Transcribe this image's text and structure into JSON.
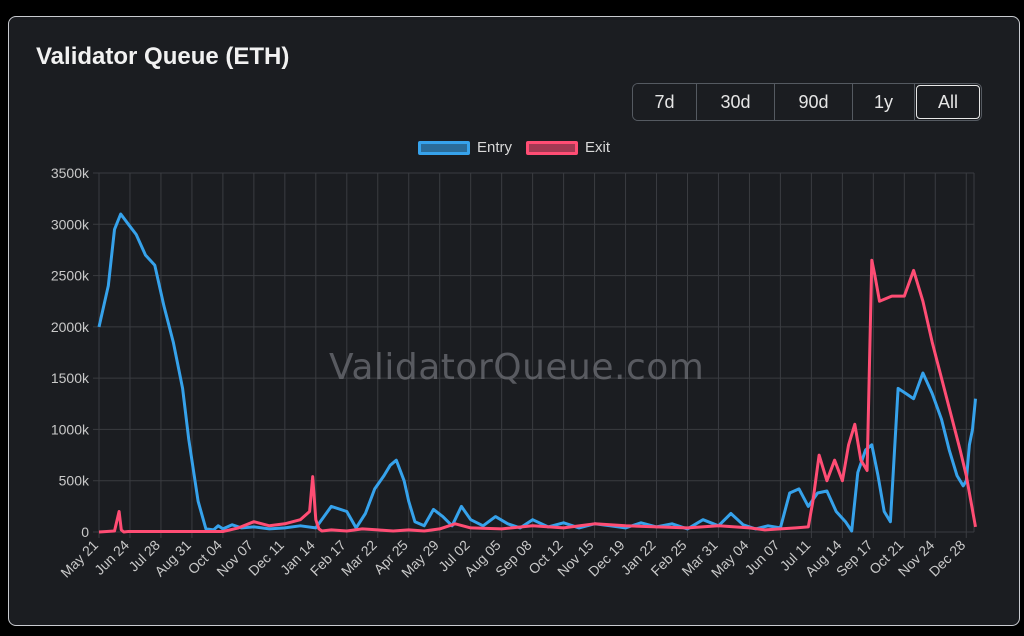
{
  "header": {
    "title": "Validator Queue (ETH)"
  },
  "range_buttons": [
    {
      "label": "7d",
      "active": false
    },
    {
      "label": "30d",
      "active": false
    },
    {
      "label": "90d",
      "active": false
    },
    {
      "label": "1y",
      "active": false
    },
    {
      "label": "All",
      "active": true
    }
  ],
  "watermark": "ValidatorQueue.com",
  "colors": {
    "entry": "#36a2eb",
    "exit": "#ff4d74",
    "grid": "#3a3c41",
    "text": "#c9c9c9"
  },
  "chart_data": {
    "type": "line",
    "title": "Validator Queue (ETH)",
    "legend": "top-center",
    "grid": true,
    "ylim": [
      0,
      3500
    ],
    "y_ticks": [
      "0",
      "500k",
      "1000k",
      "1500k",
      "2000k",
      "2500k",
      "3000k",
      "3500k"
    ],
    "categories": [
      "May 21",
      "Jun 24",
      "Jul 28",
      "Aug 31",
      "Oct 04",
      "Nov 07",
      "Dec 11",
      "Jan 14",
      "Feb 17",
      "Mar 22",
      "Apr 25",
      "May 29",
      "Jul 02",
      "Aug 05",
      "Sep 08",
      "Oct 12",
      "Nov 15",
      "Dec 19",
      "Jan 22",
      "Feb 25",
      "Mar 31",
      "May 04",
      "Jun 07",
      "Jul 11",
      "Aug 14",
      "Sep 17",
      "Oct 21",
      "Nov 24",
      "Dec 28"
    ],
    "series": [
      {
        "name": "Entry",
        "color": "#36a2eb",
        "x": [
          0,
          0.3,
          0.5,
          0.7,
          0.95,
          1.2,
          1.5,
          1.8,
          2.1,
          2.4,
          2.7,
          2.9,
          3.2,
          3.45,
          3.7,
          3.85,
          4.0,
          4.3,
          4.6,
          5.0,
          5.5,
          6.0,
          6.5,
          7.0,
          7.5,
          8.0,
          8.3,
          8.6,
          8.9,
          9.2,
          9.4,
          9.6,
          9.85,
          10.0,
          10.2,
          10.5,
          10.8,
          11.1,
          11.4,
          11.7,
          12.0,
          12.4,
          12.8,
          13.2,
          13.6,
          14.0,
          14.5,
          15.0,
          15.5,
          16.0,
          16.5,
          17.0,
          17.5,
          18.0,
          18.5,
          19.0,
          19.5,
          20.0,
          20.4,
          20.8,
          21.2,
          21.6,
          22.0,
          22.3,
          22.6,
          22.9,
          23.2,
          23.5,
          23.8,
          24.1,
          24.3,
          24.5,
          24.75,
          24.95,
          25.15,
          25.35,
          25.55,
          25.8,
          26.05,
          26.3,
          26.6,
          26.9,
          27.2,
          27.45,
          27.7,
          27.9,
          28.0,
          28.1,
          28.2,
          28.3
        ],
        "values": [
          2000,
          2400,
          2950,
          3100,
          3000,
          2900,
          2700,
          2600,
          2200,
          1850,
          1400,
          900,
          300,
          30,
          20,
          60,
          30,
          70,
          40,
          50,
          30,
          40,
          60,
          40,
          250,
          200,
          40,
          180,
          420,
          550,
          650,
          700,
          500,
          300,
          100,
          60,
          220,
          150,
          60,
          250,
          120,
          60,
          150,
          80,
          40,
          120,
          50,
          90,
          40,
          80,
          60,
          40,
          90,
          50,
          80,
          30,
          120,
          60,
          180,
          70,
          30,
          60,
          40,
          380,
          420,
          250,
          380,
          400,
          200,
          100,
          10,
          580,
          800,
          850,
          550,
          200,
          100,
          1400,
          1350,
          1300,
          1550,
          1350,
          1100,
          800,
          550,
          450,
          500,
          850,
          1000,
          1300
        ]
      },
      {
        "name": "Exit",
        "color": "#ff4d74",
        "x": [
          0,
          0.5,
          0.65,
          0.72,
          0.8,
          0.95,
          1.2,
          2.0,
          3.0,
          4.0,
          4.5,
          5.0,
          5.5,
          6.0,
          6.5,
          6.8,
          6.9,
          7.0,
          7.1,
          7.2,
          7.5,
          8.0,
          8.5,
          9.0,
          9.5,
          10.0,
          10.5,
          11.0,
          11.5,
          12.0,
          13.0,
          14.0,
          15.0,
          16.0,
          17.0,
          18.0,
          19.0,
          20.0,
          21.0,
          21.5,
          22.0,
          22.5,
          22.9,
          23.05,
          23.25,
          23.5,
          23.75,
          24.0,
          24.2,
          24.4,
          24.6,
          24.8,
          24.95,
          25.05,
          25.2,
          25.6,
          26.0,
          26.3,
          26.6,
          26.9,
          27.2,
          27.5,
          27.8,
          28.0,
          28.3
        ],
        "values": [
          0,
          10,
          200,
          20,
          0,
          5,
          5,
          5,
          5,
          5,
          40,
          100,
          60,
          80,
          120,
          200,
          540,
          120,
          30,
          10,
          20,
          10,
          30,
          20,
          10,
          20,
          10,
          30,
          80,
          40,
          30,
          60,
          40,
          80,
          60,
          50,
          40,
          60,
          40,
          20,
          30,
          40,
          50,
          300,
          750,
          500,
          700,
          500,
          850,
          1050,
          700,
          600,
          2650,
          2500,
          2250,
          2300,
          2300,
          2550,
          2250,
          1850,
          1500,
          1150,
          800,
          550,
          50
        ]
      }
    ]
  }
}
